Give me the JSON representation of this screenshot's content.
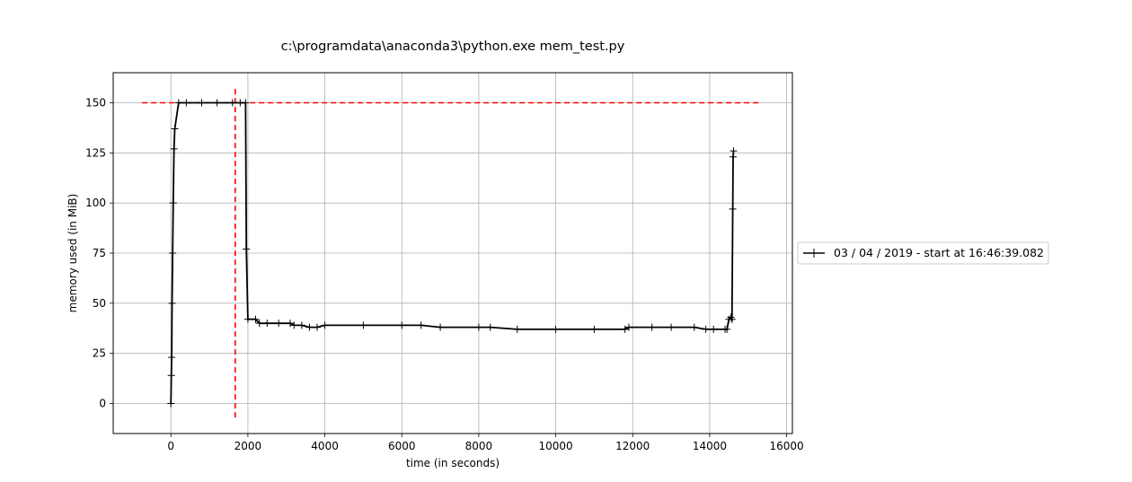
{
  "chart_data": {
    "type": "line",
    "title": "c:\\programdata\\anaconda3\\python.exe mem_test.py",
    "xlabel": "time (in seconds)",
    "ylabel": "memory used (in MiB)",
    "xlim": [
      -1500,
      16150
    ],
    "ylim": [
      -15,
      165
    ],
    "xticks": [
      0,
      2000,
      4000,
      6000,
      8000,
      10000,
      12000,
      14000,
      16000
    ],
    "yticks": [
      0,
      25,
      50,
      75,
      100,
      125,
      150
    ],
    "xtick_labels": [
      "0",
      "2000",
      "4000",
      "6000",
      "8000",
      "10000",
      "12000",
      "14000",
      "16000"
    ],
    "ytick_labels": [
      "0",
      "25",
      "50",
      "75",
      "100",
      "125",
      "150"
    ],
    "grid": true,
    "legend_position": "right-outside",
    "series": [
      {
        "name": "03 / 04 / 2019 - start at 16:46:39.082",
        "color": "#000000",
        "marker": "plus",
        "x": [
          0,
          10,
          20,
          30,
          45,
          60,
          80,
          100,
          200,
          400,
          800,
          1200,
          1600,
          1800,
          1940,
          1960,
          2000,
          2200,
          2300,
          2500,
          2800,
          3100,
          3200,
          3400,
          3600,
          3800,
          4000,
          5000,
          6000,
          6500,
          7000,
          8000,
          8300,
          9000,
          10000,
          11000,
          11800,
          11900,
          12500,
          13000,
          13600,
          13900,
          14100,
          14400,
          14450,
          14500,
          14550,
          14580,
          14600,
          14610,
          14620
        ],
        "y": [
          0,
          14,
          23,
          50,
          75,
          100,
          127,
          137,
          150,
          150,
          150,
          150,
          150,
          150,
          150,
          77,
          42,
          42,
          40,
          40,
          40,
          40,
          39,
          39,
          38,
          38,
          39,
          39,
          39,
          39,
          38,
          38,
          38,
          37,
          37,
          37,
          37,
          38,
          38,
          38,
          38,
          37,
          37,
          37,
          37,
          42,
          43,
          42,
          97,
          123,
          126
        ]
      }
    ],
    "reference_lines": [
      {
        "orientation": "horizontal",
        "value": 150,
        "from": -750,
        "to": 15350,
        "color": "#ff0000",
        "style": "dashed"
      },
      {
        "orientation": "vertical",
        "value": 1670,
        "from": -7,
        "to": 157,
        "color": "#ff0000",
        "style": "dashed"
      }
    ]
  }
}
